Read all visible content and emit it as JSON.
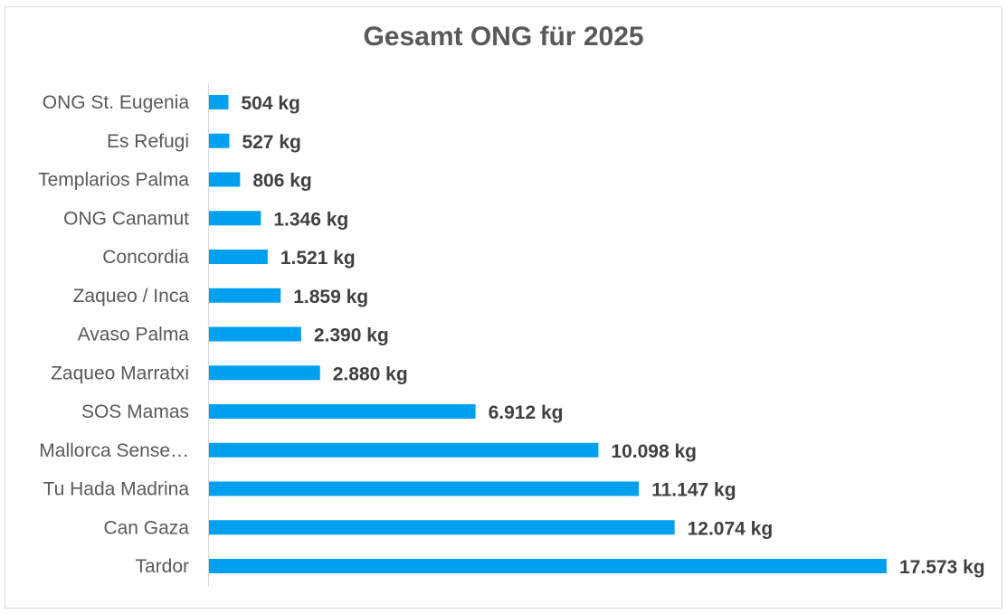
{
  "chart_data": {
    "type": "bar",
    "orientation": "horizontal",
    "title": "Gesamt ONG für 2025",
    "xlabel": "",
    "ylabel": "",
    "unit_suffix": " kg",
    "bar_color": "#00A0F0",
    "xlim": [
      0,
      17573
    ],
    "grid": false,
    "legend": "none",
    "categories": [
      "ONG St. Eugenia",
      "Es Refugi",
      "Templarios Palma",
      "ONG Canamut",
      "Concordia",
      "Zaqueo / Inca",
      "Avaso Palma",
      "Zaqueo Marratxi",
      "SOS Mamas",
      "Mallorca Sense…",
      "Tu Hada Madrina",
      "Can Gaza",
      "Tardor"
    ],
    "values": [
      504,
      527,
      806,
      1346,
      1521,
      1859,
      2390,
      2880,
      6912,
      10098,
      11147,
      12074,
      17573
    ],
    "data_labels": [
      "504 kg",
      "527 kg",
      "806 kg",
      "1.346 kg",
      "1.521 kg",
      "1.859 kg",
      "2.390 kg",
      "2.880 kg",
      "6.912 kg",
      "10.098 kg",
      "11.147 kg",
      "12.074 kg",
      "17.573 kg"
    ]
  }
}
